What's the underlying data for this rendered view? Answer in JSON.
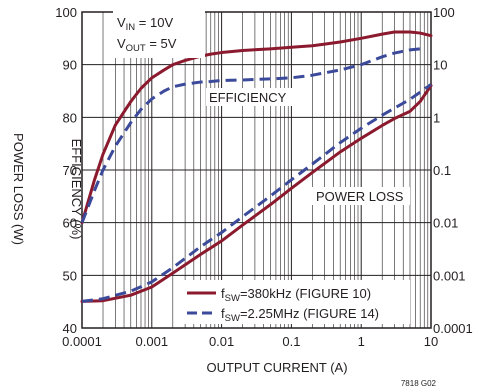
{
  "chart_data": {
    "type": "line",
    "xlabel": "OUTPUT CURRENT (A)",
    "ylabel_left": "EFFICIENCY (%)",
    "ylabel_right": "POWER LOSS (W)",
    "x_scale": "log",
    "xlim": [
      0.0001,
      10
    ],
    "y_left_lim": [
      40,
      100
    ],
    "y_right_scale": "log",
    "y_right_lim": [
      0.0001,
      100
    ],
    "x_ticks": [
      "0.0001",
      "0.001",
      "0.01",
      "0.1",
      "1",
      "10"
    ],
    "y_left_ticks": [
      "40",
      "50",
      "60",
      "70",
      "80",
      "90",
      "100"
    ],
    "y_right_ticks": [
      "0.0001",
      "0.001",
      "0.01",
      "0.1",
      "1",
      "10",
      "100"
    ],
    "grid": true,
    "conditions": {
      "vin": {
        "main": "V",
        "sub": "IN",
        "rest": " = 10V"
      },
      "vout": {
        "main": "V",
        "sub": "OUT",
        "rest": " = 5V"
      }
    },
    "annotations": {
      "efficiency": "EFFICIENCY",
      "power_loss": "POWER LOSS"
    },
    "figure_number": "7818 G02",
    "legend": {
      "placement": "bottom-right",
      "entries": [
        {
          "f": "f",
          "sub": "SW",
          "rest": "=380kHz (FIGURE 10)",
          "color": "#8b1a2e",
          "dash": "solid"
        },
        {
          "f": "f",
          "sub": "SW",
          "rest": "=2.25MHz (FIGURE 14)",
          "color": "#3b4a9a",
          "dash": "dashed"
        }
      ]
    },
    "series": [
      {
        "color": "#8b1a2e",
        "dash": "solid",
        "axis": "left",
        "points": [
          [
            0.0001,
            60
          ],
          [
            0.00015,
            68
          ],
          [
            0.0002,
            73
          ],
          [
            0.0003,
            78.5
          ],
          [
            0.0005,
            83
          ],
          [
            0.0007,
            85.5
          ],
          [
            0.001,
            87.5
          ],
          [
            0.0015,
            89
          ],
          [
            0.002,
            90
          ],
          [
            0.003,
            90.8
          ],
          [
            0.005,
            91.6
          ],
          [
            0.007,
            92
          ],
          [
            0.01,
            92.3
          ],
          [
            0.02,
            92.7
          ],
          [
            0.05,
            93
          ],
          [
            0.1,
            93.3
          ],
          [
            0.2,
            93.6
          ],
          [
            0.3,
            93.9
          ],
          [
            0.5,
            94.3
          ],
          [
            1,
            95
          ],
          [
            2,
            95.8
          ],
          [
            3,
            96.2
          ],
          [
            5,
            96.2
          ],
          [
            7,
            96
          ],
          [
            10,
            95.5
          ]
        ]
      },
      {
        "color": "#3b4a9a",
        "dash": "dashed",
        "axis": "left",
        "points": [
          [
            0.0001,
            60
          ],
          [
            0.00015,
            66
          ],
          [
            0.0002,
            70
          ],
          [
            0.0003,
            74.5
          ],
          [
            0.0005,
            79
          ],
          [
            0.0007,
            81.5
          ],
          [
            0.001,
            83.5
          ],
          [
            0.0015,
            85
          ],
          [
            0.002,
            85.8
          ],
          [
            0.003,
            86.3
          ],
          [
            0.005,
            86.7
          ],
          [
            0.007,
            86.8
          ],
          [
            0.01,
            87
          ],
          [
            0.02,
            87.1
          ],
          [
            0.05,
            87.3
          ],
          [
            0.1,
            87.5
          ],
          [
            0.2,
            88
          ],
          [
            0.5,
            89
          ],
          [
            1,
            90
          ],
          [
            2,
            91.5
          ],
          [
            3,
            92.2
          ],
          [
            5,
            92.8
          ],
          [
            7,
            93
          ]
        ]
      },
      {
        "color": "#8b1a2e",
        "dash": "solid",
        "axis": "right",
        "points": [
          [
            0.0001,
            0.00032
          ],
          [
            0.0002,
            0.00033
          ],
          [
            0.0005,
            0.00042
          ],
          [
            0.001,
            0.0006
          ],
          [
            0.002,
            0.0011
          ],
          [
            0.005,
            0.0025
          ],
          [
            0.01,
            0.0045
          ],
          [
            0.02,
            0.009
          ],
          [
            0.05,
            0.022
          ],
          [
            0.1,
            0.045
          ],
          [
            0.2,
            0.09
          ],
          [
            0.5,
            0.22
          ],
          [
            1,
            0.4
          ],
          [
            2,
            0.7
          ],
          [
            3,
            0.95
          ],
          [
            5,
            1.3
          ],
          [
            7,
            2
          ],
          [
            10,
            4
          ]
        ]
      },
      {
        "color": "#3b4a9a",
        "dash": "dashed",
        "axis": "right",
        "points": [
          [
            0.0001,
            0.00032
          ],
          [
            0.0002,
            0.00036
          ],
          [
            0.0005,
            0.0005
          ],
          [
            0.001,
            0.00075
          ],
          [
            0.002,
            0.0014
          ],
          [
            0.005,
            0.0035
          ],
          [
            0.01,
            0.0065
          ],
          [
            0.02,
            0.013
          ],
          [
            0.05,
            0.032
          ],
          [
            0.1,
            0.065
          ],
          [
            0.2,
            0.13
          ],
          [
            0.5,
            0.33
          ],
          [
            1,
            0.62
          ],
          [
            2,
            1.1
          ],
          [
            5,
            2.2
          ],
          [
            10,
            4.2
          ]
        ]
      }
    ]
  }
}
